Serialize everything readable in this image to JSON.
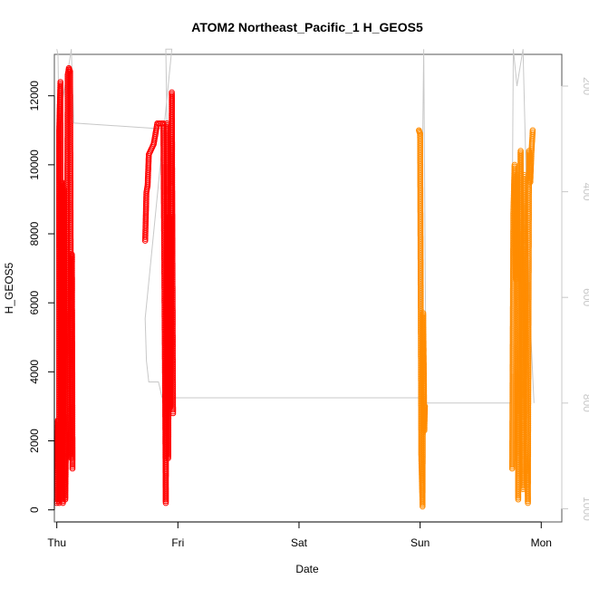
{
  "chart_data": {
    "type": "scatter",
    "title": "ATOM2 Northeast_Pacific_1 H_GEOS5",
    "xlabel": "Date",
    "ylabel": "H_GEOS5",
    "x_ticks": [
      "Thu",
      "Fri",
      "Sat",
      "Sun",
      "Mon"
    ],
    "xlim": [
      -0.02,
      4.17
    ],
    "ylim": [
      -350,
      13200
    ],
    "y_ticks": [
      0,
      2000,
      4000,
      6000,
      8000,
      10000,
      12000
    ],
    "y2_ticks": [
      200,
      400,
      600,
      800,
      1000
    ],
    "y2lim": [
      1025,
      140
    ],
    "grid": false,
    "colors": {
      "red": "#ff0000",
      "orange": "#ff8c00",
      "pressure": "#c8c8c8",
      "frame": "#555555"
    },
    "series": [
      {
        "color": "red",
        "segments": [
          [
            [
              0.0,
              200
            ],
            [
              0.01,
              2600
            ],
            [
              0.02,
              200
            ],
            [
              0.02,
              11000
            ],
            [
              0.03,
              12400
            ],
            [
              0.035,
              500
            ],
            [
              0.04,
              9500
            ],
            [
              0.05,
              200
            ],
            [
              0.06,
              9300
            ],
            [
              0.065,
              5000
            ],
            [
              0.07,
              300
            ],
            [
              0.08,
              3000
            ],
            [
              0.09,
              12600
            ],
            [
              0.1,
              12800
            ],
            [
              0.11,
              12700
            ],
            [
              0.12,
              1500
            ],
            [
              0.125,
              7400
            ],
            [
              0.13,
              1200
            ]
          ],
          [
            [
              0.73,
              7800
            ],
            [
              0.74,
              9200
            ],
            [
              0.75,
              9400
            ],
            [
              0.76,
              10300
            ],
            [
              0.8,
              10600
            ],
            [
              0.83,
              11200
            ],
            [
              0.88,
              11200
            ],
            [
              0.9,
              200
            ],
            [
              0.91,
              11200
            ],
            [
              0.92,
              1500
            ],
            [
              0.93,
              8500
            ],
            [
              0.94,
              3000
            ],
            [
              0.95,
              12100
            ],
            [
              0.96,
              2800
            ]
          ]
        ]
      },
      {
        "color": "orange",
        "segments": [
          [
            [
              2.99,
              11000
            ],
            [
              3.0,
              10900
            ],
            [
              3.01,
              1500
            ],
            [
              3.02,
              100
            ],
            [
              3.025,
              5700
            ],
            [
              3.03,
              4300
            ],
            [
              3.035,
              2300
            ],
            [
              3.04,
              3000
            ]
          ],
          [
            [
              3.76,
              1200
            ],
            [
              3.77,
              8600
            ],
            [
              3.78,
              10000
            ],
            [
              3.79,
              6700
            ],
            [
              3.8,
              9700
            ],
            [
              3.81,
              300
            ],
            [
              3.82,
              6000
            ],
            [
              3.83,
              10400
            ],
            [
              3.84,
              5600
            ],
            [
              3.85,
              600
            ],
            [
              3.86,
              9700
            ],
            [
              3.87,
              7200
            ],
            [
              3.88,
              1900
            ],
            [
              3.89,
              200
            ],
            [
              3.9,
              10400
            ],
            [
              3.91,
              9500
            ],
            [
              3.92,
              10400
            ],
            [
              3.93,
              11000
            ]
          ]
        ]
      }
    ],
    "pressure_line": [
      [
        0.0,
        130
      ],
      [
        0.01,
        140
      ],
      [
        0.02,
        300
      ],
      [
        0.04,
        240
      ],
      [
        0.06,
        210
      ],
      [
        0.08,
        180
      ],
      [
        0.1,
        160
      ],
      [
        0.12,
        130
      ],
      [
        0.14,
        270
      ],
      [
        0.8,
        280
      ],
      [
        0.91,
        280
      ],
      [
        0.9,
        130
      ],
      [
        0.95,
        130
      ],
      [
        0.73,
        640
      ],
      [
        0.74,
        720
      ],
      [
        0.76,
        760
      ],
      [
        0.84,
        760
      ],
      [
        0.87,
        790
      ],
      [
        2.99,
        790
      ],
      [
        3.0,
        750
      ],
      [
        3.03,
        130
      ],
      [
        3.05,
        800
      ],
      [
        3.75,
        800
      ],
      [
        3.77,
        130
      ],
      [
        3.8,
        200
      ],
      [
        3.85,
        130
      ],
      [
        3.9,
        600
      ],
      [
        3.94,
        800
      ]
    ]
  }
}
